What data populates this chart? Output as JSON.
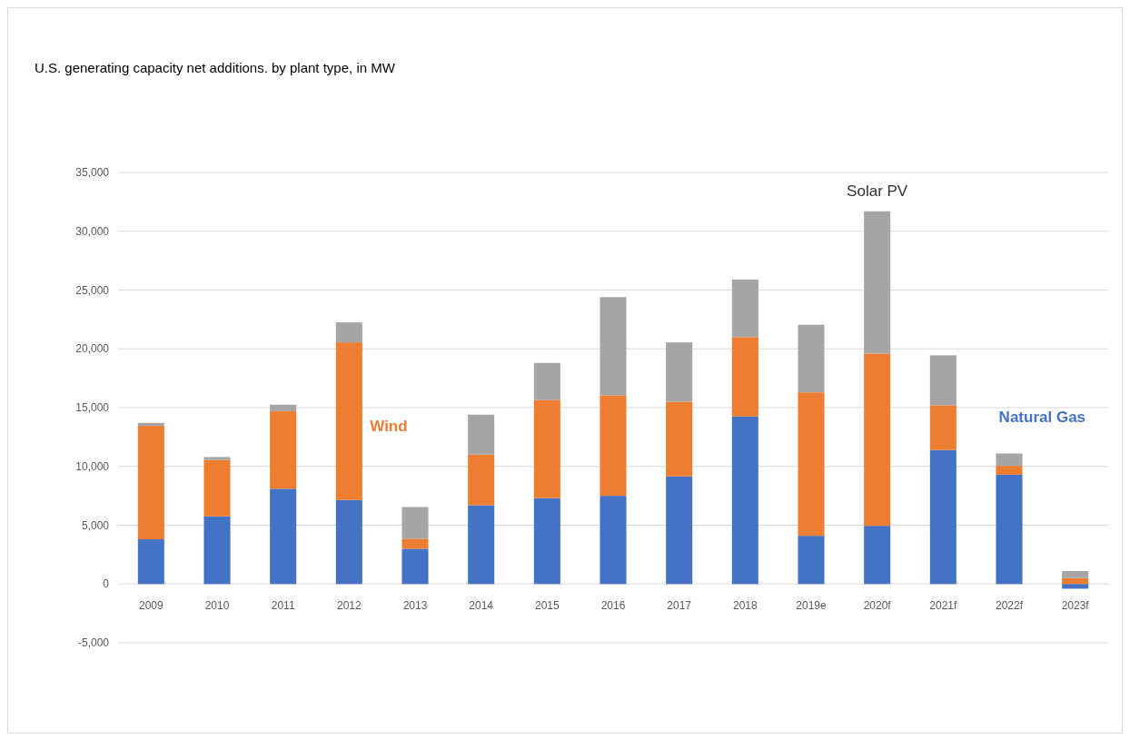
{
  "chart_data": {
    "type": "bar",
    "title": "U.S. generating capacity net additions. by plant type, in MW",
    "stacked": true,
    "categories": [
      "2009",
      "2010",
      "2011",
      "2012",
      "2013",
      "2014",
      "2015",
      "2016",
      "2017",
      "2018",
      "2019e",
      "2020f",
      "2021f",
      "2022f",
      "2023f"
    ],
    "series": [
      {
        "name": "Natural Gas",
        "color": "#4472c4",
        "values": [
          3800,
          5750,
          8100,
          7150,
          3000,
          6700,
          7300,
          7500,
          9150,
          14250,
          4100,
          4950,
          11400,
          9300,
          -400
        ]
      },
      {
        "name": "Wind",
        "color": "#ed7d31",
        "values": [
          9650,
          4800,
          6600,
          13400,
          850,
          4300,
          8350,
          8550,
          6350,
          6750,
          12200,
          14650,
          3800,
          750,
          500
        ]
      },
      {
        "name": "Solar PV",
        "color": "#a5a5a5",
        "values": [
          250,
          250,
          550,
          1700,
          2700,
          3400,
          3150,
          8350,
          5050,
          4900,
          5750,
          12100,
          4250,
          1050,
          600
        ]
      }
    ],
    "ylim": [
      -5000,
      35000
    ],
    "yticks": [
      {
        "value": -5000,
        "label": "-5,000"
      },
      0,
      {
        "value": 5000,
        "label": "5,000"
      },
      {
        "value": 10000,
        "label": "10,000"
      },
      {
        "value": 15000,
        "label": "15,000"
      },
      {
        "value": 20000,
        "label": "20,000"
      },
      {
        "value": 25000,
        "label": "25,000"
      },
      {
        "value": 30000,
        "label": "30,000"
      },
      {
        "value": 35000,
        "label": "35,000"
      }
    ],
    "grid": "y",
    "legend": false
  }
}
